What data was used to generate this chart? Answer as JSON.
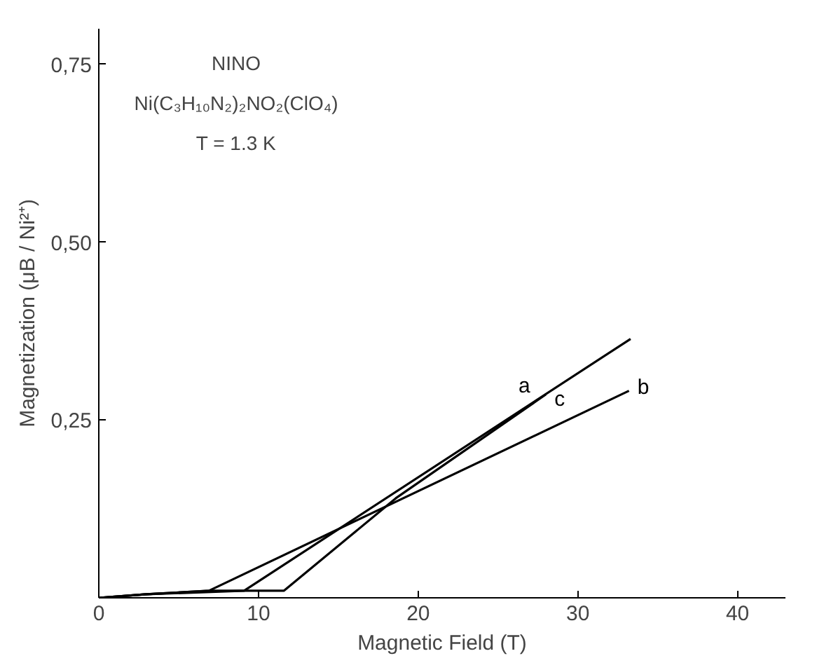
{
  "chart_data": {
    "type": "line",
    "xlabel": "Magnetic Field (T)",
    "ylabel": "Magnetization (μB / Ni²⁺)",
    "annotations": [
      "NINO",
      "Ni(C₃H₁₀N₂)₂NO₂(ClO₄)",
      "T = 1.3 K"
    ],
    "series": [
      {
        "name": "a",
        "color": "#000000",
        "x": [
          0,
          3,
          9.1,
          33.3
        ],
        "values": [
          0,
          0.005,
          0.01,
          0.364
        ]
      },
      {
        "name": "b",
        "color": "#000000",
        "x": [
          0,
          3,
          6.9,
          33.2
        ],
        "values": [
          0,
          0.005,
          0.01,
          0.291
        ]
      },
      {
        "name": "c",
        "color": "#000000",
        "x": [
          0,
          3,
          7,
          11.6,
          18.6,
          28
        ],
        "values": [
          0,
          0.005,
          0.01,
          0.01,
          0.14,
          0.286
        ]
      }
    ],
    "xlim": [
      0,
      43
    ],
    "ylim": [
      0,
      0.8
    ],
    "xticks": [
      0,
      10,
      20,
      30,
      40
    ],
    "yticks": [
      {
        "value": 0.25,
        "label": "0,25"
      },
      {
        "value": 0.5,
        "label": "0,50"
      },
      {
        "value": 0.75,
        "label": "0,75"
      }
    ],
    "grid": false,
    "marker": "none",
    "line_style": "solid"
  }
}
